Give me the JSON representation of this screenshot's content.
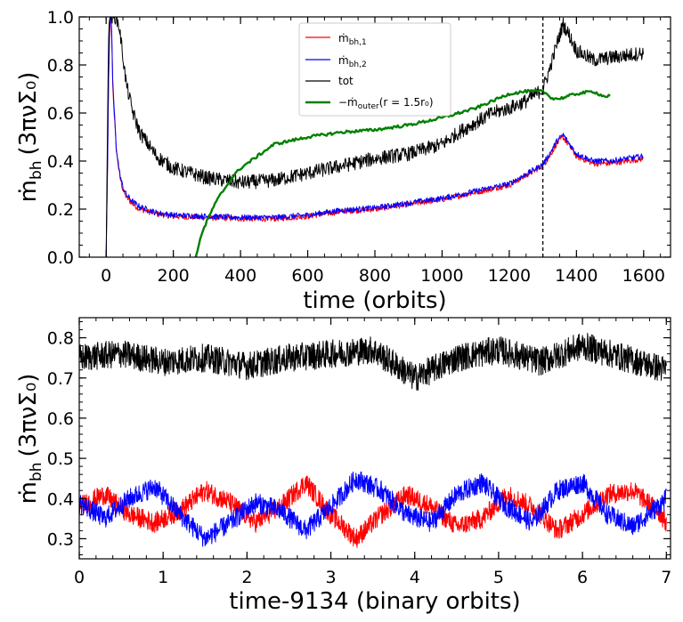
{
  "chart_data": [
    {
      "type": "line",
      "xlabel": "time (orbits)",
      "ylabel_main": "ṁ",
      "ylabel_sub": "bh",
      "ylabel_units": "(3πνΣ₀)",
      "xlim": [
        -80,
        1680
      ],
      "ylim": [
        0.0,
        1.0
      ],
      "xticks": [
        0,
        200,
        400,
        600,
        800,
        1000,
        1200,
        1400,
        1600
      ],
      "xtick_labels": [
        "0",
        "200",
        "400",
        "600",
        "800",
        "1000",
        "1200",
        "1400",
        "1600"
      ],
      "yticks": [
        0.0,
        0.2,
        0.4,
        0.6,
        0.8,
        1.0
      ],
      "ytick_labels": [
        "0.0",
        "0.2",
        "0.4",
        "0.6",
        "0.8",
        "1.0"
      ],
      "vline_x": 1300,
      "legend": [
        {
          "label_main": "ṁ",
          "label_sub": "bh,1",
          "color": "#ff0000"
        },
        {
          "label_main": "ṁ",
          "label_sub": "bh,2",
          "color": "#0000ff"
        },
        {
          "label_main": "tot",
          "label_sub": "",
          "color": "#000000"
        },
        {
          "label_main": "−ṁ",
          "label_sub": "outer",
          "label_tail": "(r = 1.5r₀)",
          "color": "#008000"
        }
      ],
      "series": [
        {
          "name": "mdot_bh1",
          "color": "#ff0000",
          "x": [
            0,
            4,
            8,
            12,
            16,
            20,
            30,
            40,
            50,
            60,
            80,
            100,
            150,
            200,
            300,
            400,
            500,
            600,
            700,
            800,
            900,
            1000,
            1100,
            1200,
            1250,
            1300,
            1320,
            1340,
            1360,
            1400,
            1450,
            1500,
            1550,
            1600
          ],
          "y": [
            0.0,
            0.35,
            0.8,
            1.0,
            0.95,
            0.7,
            0.45,
            0.34,
            0.28,
            0.25,
            0.22,
            0.2,
            0.18,
            0.17,
            0.165,
            0.16,
            0.16,
            0.17,
            0.19,
            0.2,
            0.22,
            0.24,
            0.27,
            0.3,
            0.34,
            0.38,
            0.42,
            0.47,
            0.5,
            0.42,
            0.39,
            0.39,
            0.4,
            0.41
          ]
        },
        {
          "name": "mdot_bh2",
          "color": "#0000ff",
          "x": [
            0,
            4,
            8,
            12,
            16,
            20,
            30,
            40,
            50,
            60,
            80,
            100,
            150,
            200,
            300,
            400,
            500,
            600,
            700,
            800,
            900,
            1000,
            1100,
            1200,
            1250,
            1300,
            1320,
            1340,
            1360,
            1400,
            1450,
            1500,
            1550,
            1600
          ],
          "y": [
            0.0,
            0.36,
            0.82,
            1.0,
            0.97,
            0.72,
            0.46,
            0.35,
            0.29,
            0.26,
            0.23,
            0.21,
            0.185,
            0.175,
            0.17,
            0.165,
            0.165,
            0.175,
            0.195,
            0.205,
            0.225,
            0.245,
            0.275,
            0.305,
            0.345,
            0.385,
            0.43,
            0.48,
            0.51,
            0.43,
            0.4,
            0.4,
            0.41,
            0.42
          ]
        },
        {
          "name": "tot",
          "color": "#000000",
          "x": [
            0,
            4,
            8,
            12,
            16,
            20,
            30,
            40,
            60,
            80,
            100,
            150,
            200,
            300,
            400,
            500,
            600,
            700,
            800,
            900,
            1000,
            1050,
            1100,
            1150,
            1200,
            1250,
            1300,
            1320,
            1340,
            1360,
            1380,
            1400,
            1450,
            1500,
            1550,
            1600
          ],
          "y": [
            0.0,
            0.5,
            1.0,
            1.0,
            1.0,
            1.0,
            1.0,
            0.95,
            0.72,
            0.6,
            0.52,
            0.42,
            0.37,
            0.33,
            0.31,
            0.32,
            0.35,
            0.38,
            0.41,
            0.43,
            0.47,
            0.52,
            0.56,
            0.6,
            0.62,
            0.65,
            0.7,
            0.78,
            0.88,
            0.97,
            0.92,
            0.86,
            0.82,
            0.83,
            0.84,
            0.85
          ]
        },
        {
          "name": "minus_mdot_outer",
          "color": "#008000",
          "x": [
            260,
            280,
            300,
            320,
            340,
            360,
            380,
            400,
            450,
            500,
            600,
            700,
            800,
            900,
            1000,
            1100,
            1150,
            1200,
            1250,
            1300,
            1330,
            1350,
            1400,
            1450,
            1480,
            1500
          ],
          "y": [
            -0.05,
            0.08,
            0.15,
            0.21,
            0.26,
            0.3,
            0.34,
            0.37,
            0.42,
            0.47,
            0.5,
            0.52,
            0.53,
            0.55,
            0.58,
            0.62,
            0.65,
            0.68,
            0.69,
            0.69,
            0.66,
            0.66,
            0.68,
            0.69,
            0.67,
            0.67
          ]
        }
      ]
    },
    {
      "type": "line",
      "xlabel": "time-9134 (binary orbits)",
      "ylabel_main": "ṁ",
      "ylabel_sub": "bh",
      "ylabel_units": "(3πνΣ₀)",
      "xlim": [
        0,
        7.05
      ],
      "ylim": [
        0.25,
        0.85
      ],
      "xticks": [
        0,
        1,
        2,
        3,
        4,
        5,
        6,
        7
      ],
      "xtick_labels": [
        "0",
        "1",
        "2",
        "3",
        "4",
        "5",
        "6",
        "7"
      ],
      "yticks": [
        0.3,
        0.4,
        0.5,
        0.6,
        0.7,
        0.8
      ],
      "ytick_labels": [
        "0.3",
        "0.4",
        "0.5",
        "0.6",
        "0.7",
        "0.8"
      ],
      "series": [
        {
          "name": "tot",
          "color": "#000000",
          "x": [
            0,
            0.5,
            1,
            1.5,
            2,
            2.5,
            3,
            3.5,
            4,
            4.5,
            5,
            5.5,
            6,
            6.5,
            7
          ],
          "y": [
            0.75,
            0.76,
            0.74,
            0.75,
            0.73,
            0.75,
            0.76,
            0.77,
            0.7,
            0.75,
            0.77,
            0.74,
            0.78,
            0.75,
            0.72
          ]
        },
        {
          "name": "mdot_bh1",
          "color": "#ff0000",
          "x": [
            0,
            0.3,
            0.6,
            0.9,
            1.2,
            1.5,
            1.8,
            2.1,
            2.4,
            2.7,
            3.0,
            3.3,
            3.6,
            3.9,
            4.2,
            4.5,
            4.8,
            5.1,
            5.4,
            5.7,
            6.0,
            6.3,
            6.6,
            6.9,
            7.0
          ],
          "y": [
            0.38,
            0.41,
            0.36,
            0.34,
            0.37,
            0.42,
            0.39,
            0.34,
            0.38,
            0.44,
            0.36,
            0.3,
            0.36,
            0.41,
            0.38,
            0.33,
            0.35,
            0.41,
            0.38,
            0.32,
            0.36,
            0.41,
            0.42,
            0.37,
            0.34
          ]
        },
        {
          "name": "mdot_bh2",
          "color": "#0000ff",
          "x": [
            0,
            0.3,
            0.6,
            0.9,
            1.2,
            1.5,
            1.8,
            2.1,
            2.4,
            2.7,
            3.0,
            3.3,
            3.6,
            3.9,
            4.2,
            4.5,
            4.8,
            5.1,
            5.4,
            5.7,
            6.0,
            6.3,
            6.6,
            6.9,
            7.0
          ],
          "y": [
            0.39,
            0.35,
            0.4,
            0.43,
            0.36,
            0.3,
            0.34,
            0.39,
            0.37,
            0.32,
            0.38,
            0.45,
            0.42,
            0.36,
            0.34,
            0.41,
            0.44,
            0.38,
            0.34,
            0.42,
            0.44,
            0.36,
            0.33,
            0.38,
            0.4
          ]
        }
      ]
    }
  ]
}
